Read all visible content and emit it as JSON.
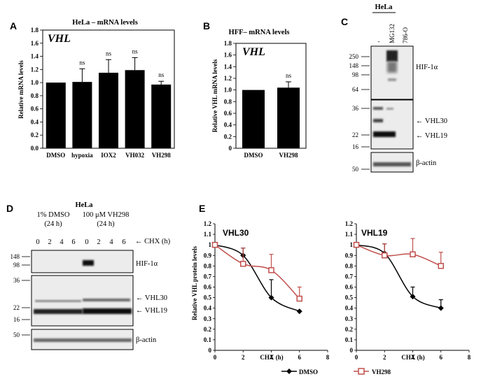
{
  "panel_labels": {
    "a": "A",
    "b": "B",
    "c": "C",
    "d": "D",
    "e": "E"
  },
  "chart_data": [
    {
      "type": "bar",
      "title": "HeLa – mRNA levels",
      "inset_label": "VHL",
      "ylabel": "Relative mRNA levels",
      "ylim": [
        0,
        1.8
      ],
      "yticks": [
        "0.0",
        "0.2",
        "0.4",
        "0.6",
        "0.8",
        "1.0",
        "1.2",
        "1.4",
        "1.6",
        "1.8"
      ],
      "categories": [
        "DMSO",
        "hypoxia",
        "IOX2",
        "VH032",
        "VH298"
      ],
      "values": [
        1.0,
        1.01,
        1.15,
        1.19,
        0.97
      ],
      "errors": [
        0.0,
        0.2,
        0.2,
        0.19,
        0.05
      ],
      "annotations": [
        "",
        "ns",
        "ns",
        "ns",
        "ns"
      ]
    },
    {
      "type": "bar",
      "title": "HFF– mRNA levels",
      "inset_label": "VHL",
      "ylabel": "Relative VHL mRNA levels",
      "ylim": [
        0,
        1.8
      ],
      "yticks": [
        "0",
        "0.2",
        "0.4",
        "0.6",
        "0.8",
        "1.0",
        "1.2",
        "1.4",
        "1.6",
        "1.8"
      ],
      "categories": [
        "DMSO",
        "VH298"
      ],
      "values": [
        1.0,
        1.04
      ],
      "errors": [
        0.0,
        0.1
      ],
      "annotations": [
        "",
        "ns"
      ]
    },
    {
      "type": "line",
      "inset_label": "VHL30",
      "ylabel": "Relative VHL protein levels",
      "xlabel": "CHX (h)",
      "xlim": [
        0,
        8
      ],
      "ylim": [
        0,
        1.2
      ],
      "xticks": [
        "0",
        "2",
        "4",
        "6",
        "8"
      ],
      "yticks": [
        "0",
        "0.1",
        "0.2",
        "0.3",
        "0.4",
        "0.5",
        "0.6",
        "0.7",
        "0.8",
        "0.9",
        "1",
        "1.1",
        "1.2"
      ],
      "x": [
        0,
        2,
        4,
        6
      ],
      "series": [
        {
          "name": "DMSO",
          "values": [
            1.0,
            0.9,
            0.5,
            0.37
          ],
          "errors": [
            0,
            0.07,
            0.17,
            0
          ],
          "color": "#000000"
        },
        {
          "name": "VH298",
          "values": [
            1.0,
            0.82,
            0.76,
            0.49
          ],
          "errors": [
            0,
            0.15,
            0.15,
            0.11
          ],
          "color": "#c0504d"
        }
      ]
    },
    {
      "type": "line",
      "inset_label": "VHL19",
      "xlabel": "CHX (h)",
      "xlim": [
        0,
        8
      ],
      "ylim": [
        0,
        1.2
      ],
      "xticks": [
        "0",
        "2",
        "4",
        "6",
        "8"
      ],
      "yticks": [
        "0",
        "0.1",
        "0.2",
        "0.3",
        "0.4",
        "0.5",
        "0.6",
        "0.7",
        "0.8",
        "0.9",
        "1",
        "1.1",
        "1.2"
      ],
      "x": [
        0,
        2,
        4,
        6
      ],
      "series": [
        {
          "name": "DMSO",
          "values": [
            1.0,
            0.92,
            0.51,
            0.4
          ],
          "errors": [
            0,
            0.09,
            0.09,
            0.08
          ],
          "color": "#000000"
        },
        {
          "name": "VH298",
          "values": [
            1.0,
            0.9,
            0.91,
            0.8
          ],
          "errors": [
            0,
            0.11,
            0.15,
            0.13
          ],
          "color": "#c0504d"
        }
      ]
    }
  ],
  "legend": {
    "dmso": "DMSO",
    "vh298": "VH298"
  },
  "blot_c": {
    "cell_line": "HeLa",
    "lanes": [
      "-",
      "MG132",
      "786-O"
    ],
    "mw": [
      "250",
      "148",
      "98",
      "64",
      "36",
      "22",
      "16",
      "50"
    ],
    "labels": {
      "hif": "HIF-1α",
      "vhl30": "← VHL30",
      "vhl19": "← VHL19",
      "actin": "β-actin"
    }
  },
  "blot_d": {
    "cell_line": "HeLa",
    "cond1_line1": "1% DMSO",
    "cond1_line2": "(24 h)",
    "cond2_line1": "100 μM VH298",
    "cond2_line2": "(24 h)",
    "chx": "← CHX (h)",
    "lanes": [
      "0",
      "2",
      "4",
      "6",
      "0",
      "2",
      "4",
      "6"
    ],
    "mw": [
      "148",
      "98",
      "36",
      "22",
      "16",
      "50"
    ],
    "labels": {
      "hif": "HIF-1α",
      "vhl30": "← VHL30",
      "vhl19": "← VHL19",
      "actin": "β-actin"
    }
  }
}
